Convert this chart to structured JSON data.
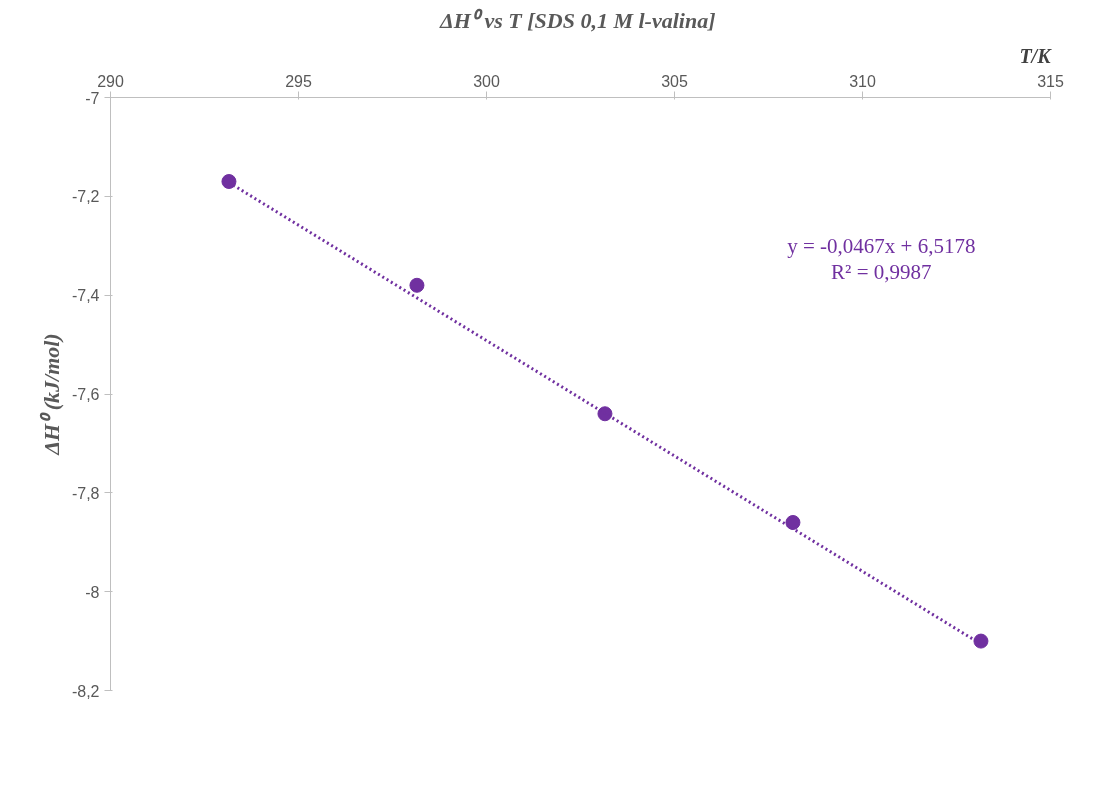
{
  "chart_data": {
    "type": "scatter",
    "title": "ΔH⁰  vs T [SDS 0,1 M l-valina]",
    "xlabel": "T/K",
    "ylabel": "ΔH⁰ (kJ/mol)",
    "x": [
      293.15,
      298.15,
      303.15,
      308.15,
      313.15
    ],
    "series": [
      {
        "color": "#7030a0",
        "marker": "circle",
        "values": [
          -7.17,
          -7.38,
          -7.64,
          -7.86,
          -8.1
        ]
      },
      {
        "type": "line",
        "color": "#7030a0",
        "line_style": "dotted",
        "x": [
          293.15,
          313.15
        ],
        "values": [
          -7.172,
          -8.106
        ]
      }
    ],
    "xlim": [
      290,
      315
    ],
    "xticks": [
      290,
      295,
      300,
      305,
      310,
      315
    ],
    "ylim": [
      -8.2,
      -7
    ],
    "yticks": [
      {
        "value": -7,
        "label": "-7"
      },
      {
        "value": -7.2,
        "label": "-7,2"
      },
      {
        "value": -7.4,
        "label": "-7,4"
      },
      {
        "value": -7.6,
        "label": "-7,6"
      },
      {
        "value": -7.8,
        "label": "-7,8"
      },
      {
        "value": -8,
        "label": "-8"
      },
      {
        "value": -8.2,
        "label": "-8,2"
      }
    ],
    "annotations": [
      "y = -0,0467x + 6,5178",
      "R² = 0,9987"
    ],
    "grid": false
  }
}
